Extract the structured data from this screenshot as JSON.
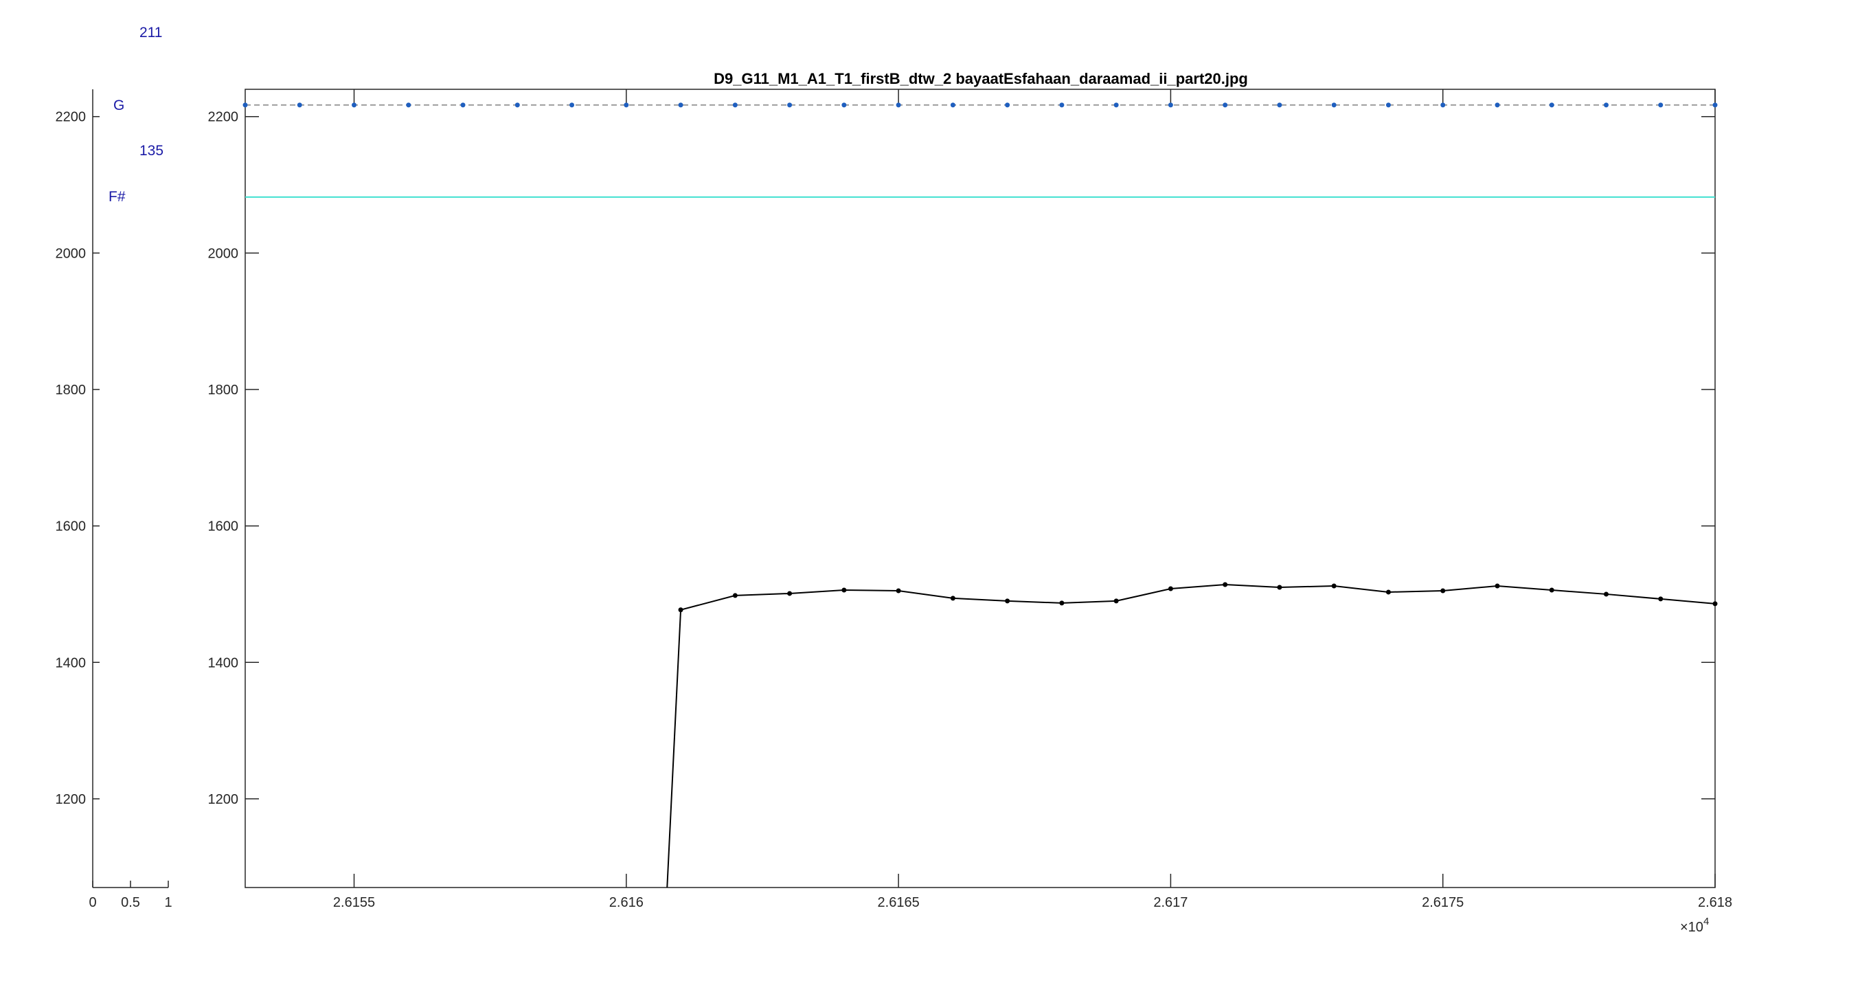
{
  "figure": {
    "title": "D9_G11_M1_A1_T1_firstB_dtw_2 bayaatEsfahaan_daraamad_ii_part20.jpg",
    "exponent_label": "×10",
    "exponent_power": "4"
  },
  "side_panel": {
    "annotations": [
      "211",
      "G",
      "135",
      "F#"
    ],
    "xticks": [
      "0",
      "0.5",
      "1"
    ],
    "yticks": [
      "1200",
      "1400",
      "1600",
      "1800",
      "2000",
      "2200"
    ]
  },
  "chart_data": {
    "type": "line",
    "title": "D9_G11_M1_A1_T1_firstB_dtw_2 bayaatEsfahaan_daraamad_ii_part20.jpg",
    "xlabel": "",
    "ylabel": "",
    "xlim": [
      26153,
      26180
    ],
    "ylim": [
      1070,
      2240
    ],
    "xticks": [
      26155,
      26160,
      26165,
      26170,
      26175,
      26180
    ],
    "xtick_labels": [
      "2.6155",
      "2.616",
      "2.6165",
      "2.617",
      "2.6175",
      "2.618"
    ],
    "yticks": [
      1200,
      1400,
      1600,
      1800,
      2000,
      2200
    ],
    "ytick_labels": [
      "1200",
      "1400",
      "1600",
      "1800",
      "2000",
      "2200"
    ],
    "grid": false,
    "reference_lines": [
      {
        "y": 2217,
        "color": "#808080",
        "style": "dashed"
      },
      {
        "y": 2082,
        "color": "#40e0d0",
        "style": "solid"
      }
    ],
    "series": [
      {
        "color": "#1f5fbf",
        "style": "dotted-markers",
        "x": [
          26153,
          26154,
          26155,
          26156,
          26157,
          26158,
          26159,
          26160,
          26161,
          26162,
          26163,
          26164,
          26165,
          26166,
          26167,
          26168,
          26169,
          26170,
          26171,
          26172,
          26173,
          26174,
          26175,
          26176,
          26177,
          26178,
          26179,
          26180
        ],
        "y": [
          2217,
          2217,
          2217,
          2217,
          2217,
          2217,
          2217,
          2217,
          2217,
          2217,
          2217,
          2217,
          2217,
          2217,
          2217,
          2217,
          2217,
          2217,
          2217,
          2217,
          2217,
          2217,
          2217,
          2217,
          2217,
          2217,
          2217,
          2217
        ]
      },
      {
        "color": "#000000",
        "style": "line-markers",
        "x": [
          26160.75,
          26161,
          26162,
          26163,
          26164,
          26165,
          26166,
          26167,
          26168,
          26169,
          26170,
          26171,
          26172,
          26173,
          26174,
          26175,
          26176,
          26177,
          26178,
          26179,
          26180
        ],
        "y": [
          1070,
          1477,
          1498,
          1501,
          1506,
          1505,
          1494,
          1490,
          1487,
          1490,
          1508,
          1514,
          1510,
          1512,
          1503,
          1505,
          1512,
          1506,
          1500,
          1493,
          1486
        ],
        "markers_from": 1
      }
    ]
  }
}
